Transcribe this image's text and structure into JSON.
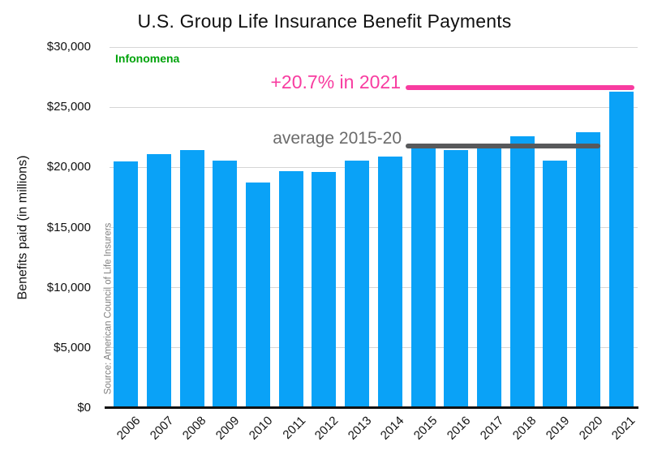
{
  "title": "U.S. Group Life Insurance Benefit Payments",
  "brand": {
    "label": "Infonomena",
    "color": "#00a30b"
  },
  "source": "Source: American Council of Life Insurers",
  "colors": {
    "bar": "#0aa2f7",
    "gridline": "#d6d6d6",
    "axis": "#111111",
    "pink": "#f83ca0",
    "gray_line": "#58595b",
    "gray_text": "#6b6b6b"
  },
  "chart_data": {
    "type": "bar",
    "title": "U.S. Group Life Insurance Benefit Payments",
    "xlabel": "",
    "ylabel": "Benefits paid (in millions)",
    "ylim": [
      0,
      30000
    ],
    "ytick_step": 5000,
    "ytick_labels": [
      "$0",
      "$5,000",
      "$10,000",
      "$15,000",
      "$20,000",
      "$25,000",
      "$30,000"
    ],
    "grid": true,
    "legend": "none",
    "categories": [
      "2006",
      "2007",
      "2008",
      "2009",
      "2010",
      "2011",
      "2012",
      "2013",
      "2014",
      "2015",
      "2016",
      "2017",
      "2018",
      "2019",
      "2020",
      "2021"
    ],
    "values": [
      20500,
      21100,
      21450,
      20550,
      18750,
      19700,
      19650,
      20550,
      20900,
      21550,
      21450,
      21800,
      22600,
      20550,
      22900,
      26300
    ],
    "annotations": [
      {
        "id": "avg",
        "label": "average 2015-20",
        "level": 21800,
        "span_years": [
          "2015",
          "2020"
        ],
        "line_color": "#58595b",
        "text_color": "#6b6b6b"
      },
      {
        "id": "pink2021",
        "label": "+20.7% in 2021",
        "level": 26650,
        "span_years": [
          "2014",
          "2021"
        ],
        "line_color": "#f83ca0",
        "text_color": "#f83ca0"
      }
    ]
  }
}
